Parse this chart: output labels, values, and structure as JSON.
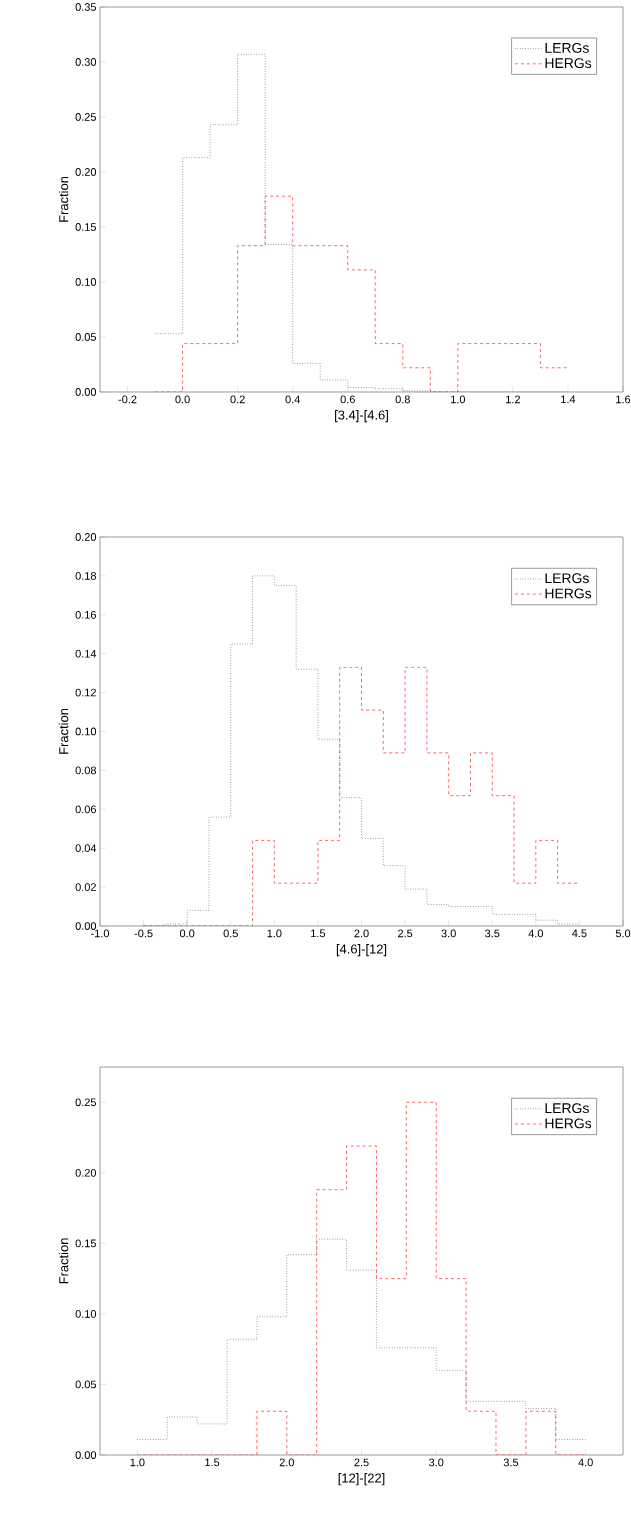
{
  "chart_data": [
    {
      "type": "histogram",
      "xlabel": "[3.4]-[4.6]",
      "ylabel": "Fraction",
      "xlim": [
        -0.3,
        1.6
      ],
      "ylim": [
        0,
        0.35
      ],
      "xticks": [
        {
          "value": -0.2,
          "label": "-0.2"
        },
        {
          "value": 0,
          "label": "0.0"
        },
        {
          "value": 0.2,
          "label": "0.2"
        },
        {
          "value": 0.4,
          "label": "0.4"
        },
        {
          "value": 0.6,
          "label": "0.6"
        },
        {
          "value": 0.8,
          "label": "0.8"
        },
        {
          "value": 1.0,
          "label": "1.0"
        },
        {
          "value": 1.2,
          "label": "1.2"
        },
        {
          "value": 1.4,
          "label": "1.4"
        },
        {
          "value": 1.6,
          "label": "1.6"
        }
      ],
      "yticks": [
        {
          "value": 0,
          "label": "0.00"
        },
        {
          "value": 0.05,
          "label": "0.05"
        },
        {
          "value": 0.1,
          "label": "0.10"
        },
        {
          "value": 0.15,
          "label": "0.15"
        },
        {
          "value": 0.2,
          "label": "0.20"
        },
        {
          "value": 0.25,
          "label": "0.25"
        },
        {
          "value": 0.3,
          "label": "0.30"
        },
        {
          "value": 0.35,
          "label": "0.35"
        }
      ],
      "legend": "top right",
      "bins": [
        -0.1,
        0.0,
        0.1,
        0.2,
        0.3,
        0.4,
        0.5,
        0.6,
        0.7,
        0.8,
        0.9,
        1.0,
        1.1,
        1.2,
        1.3,
        1.4
      ],
      "series": [
        {
          "name": "LERGs",
          "color": "#000000",
          "line_style": "dotted",
          "values": [
            0.053,
            0.213,
            0.243,
            0.307,
            0.134,
            0.026,
            0.011,
            0.004,
            0.003,
            0.001,
            0,
            0,
            0,
            0,
            0
          ]
        },
        {
          "name": "HERGs",
          "color": "#ff0000",
          "line_style": "dashed",
          "values": [
            0,
            0.044,
            0.044,
            0.133,
            0.178,
            0.133,
            0.133,
            0.111,
            0.044,
            0.022,
            0,
            0.044,
            0.044,
            0.044,
            0.022
          ]
        }
      ]
    },
    {
      "type": "histogram",
      "xlabel": "[4.6]-[12]",
      "ylabel": "Fraction",
      "xlim": [
        -1.0,
        5.0
      ],
      "ylim": [
        0,
        0.2
      ],
      "xticks": [
        {
          "value": -1.0,
          "label": "-1.0"
        },
        {
          "value": -0.5,
          "label": "-0.5"
        },
        {
          "value": 0,
          "label": "0.0"
        },
        {
          "value": 0.5,
          "label": "0.5"
        },
        {
          "value": 1.0,
          "label": "1.0"
        },
        {
          "value": 1.5,
          "label": "1.5"
        },
        {
          "value": 2.0,
          "label": "2.0"
        },
        {
          "value": 2.5,
          "label": "2.5"
        },
        {
          "value": 3.0,
          "label": "3.0"
        },
        {
          "value": 3.5,
          "label": "3.5"
        },
        {
          "value": 4.0,
          "label": "4.0"
        },
        {
          "value": 4.5,
          "label": "4.5"
        },
        {
          "value": 5.0,
          "label": "5.0"
        }
      ],
      "yticks": [
        {
          "value": 0,
          "label": "0.00"
        },
        {
          "value": 0.02,
          "label": "0.02"
        },
        {
          "value": 0.04,
          "label": "0.04"
        },
        {
          "value": 0.06,
          "label": "0.06"
        },
        {
          "value": 0.08,
          "label": "0.08"
        },
        {
          "value": 0.1,
          "label": "0.10"
        },
        {
          "value": 0.12,
          "label": "0.12"
        },
        {
          "value": 0.14,
          "label": "0.14"
        },
        {
          "value": 0.16,
          "label": "0.16"
        },
        {
          "value": 0.18,
          "label": "0.18"
        },
        {
          "value": 0.2,
          "label": "0.20"
        }
      ],
      "legend": "top right",
      "bins": [
        -0.5,
        -0.25,
        0.0,
        0.25,
        0.5,
        0.75,
        1.0,
        1.25,
        1.5,
        1.75,
        2.0,
        2.25,
        2.5,
        2.75,
        3.0,
        3.25,
        3.5,
        3.75,
        4.0,
        4.25,
        4.5
      ],
      "series": [
        {
          "name": "LERGs",
          "color": "#000000",
          "line_style": "dotted",
          "values": [
            0,
            0.001,
            0.008,
            0.056,
            0.145,
            0.18,
            0.175,
            0.132,
            0.096,
            0.066,
            0.045,
            0.031,
            0.019,
            0.011,
            0.01,
            0.01,
            0.006,
            0.006,
            0.003,
            0.001
          ]
        },
        {
          "name": "HERGs",
          "color": "#ff0000",
          "line_style": "dashed",
          "values": [
            0,
            0,
            0,
            0,
            0,
            0.044,
            0.022,
            0.022,
            0.044,
            0.133,
            0.111,
            0.089,
            0.133,
            0.089,
            0.067,
            0.089,
            0.067,
            0.022,
            0.044,
            0.022
          ]
        }
      ]
    },
    {
      "type": "histogram",
      "xlabel": "[12]-[22]",
      "ylabel": "Fraction",
      "xlim": [
        0.75,
        4.25
      ],
      "ylim": [
        0,
        0.275
      ],
      "xticks": [
        {
          "value": 1.0,
          "label": "1.0"
        },
        {
          "value": 1.5,
          "label": "1.5"
        },
        {
          "value": 2.0,
          "label": "2.0"
        },
        {
          "value": 2.5,
          "label": "2.5"
        },
        {
          "value": 3.0,
          "label": "3.0"
        },
        {
          "value": 3.5,
          "label": "3.5"
        },
        {
          "value": 4.0,
          "label": "4.0"
        }
      ],
      "yticks": [
        {
          "value": 0,
          "label": "0.00"
        },
        {
          "value": 0.05,
          "label": "0.05"
        },
        {
          "value": 0.1,
          "label": "0.10"
        },
        {
          "value": 0.15,
          "label": "0.15"
        },
        {
          "value": 0.2,
          "label": "0.20"
        },
        {
          "value": 0.25,
          "label": "0.25"
        }
      ],
      "legend": "top right",
      "bins": [
        1.0,
        1.2,
        1.4,
        1.6,
        1.8,
        2.0,
        2.2,
        2.4,
        2.6,
        2.8,
        3.0,
        3.2,
        3.4,
        3.6,
        3.8,
        4.0
      ],
      "series": [
        {
          "name": "LERGs",
          "color": "#000000",
          "line_style": "dotted",
          "values": [
            0.011,
            0.027,
            0.022,
            0.082,
            0.098,
            0.142,
            0.153,
            0.131,
            0.076,
            0.076,
            0.06,
            0.038,
            0.038,
            0.033,
            0.011
          ]
        },
        {
          "name": "HERGs",
          "color": "#ff0000",
          "line_style": "dashed",
          "values": [
            0,
            0,
            0,
            0,
            0.031,
            0,
            0.188,
            0.219,
            0.125,
            0.25,
            0.125,
            0.031,
            0,
            0.031,
            0
          ]
        }
      ]
    }
  ]
}
